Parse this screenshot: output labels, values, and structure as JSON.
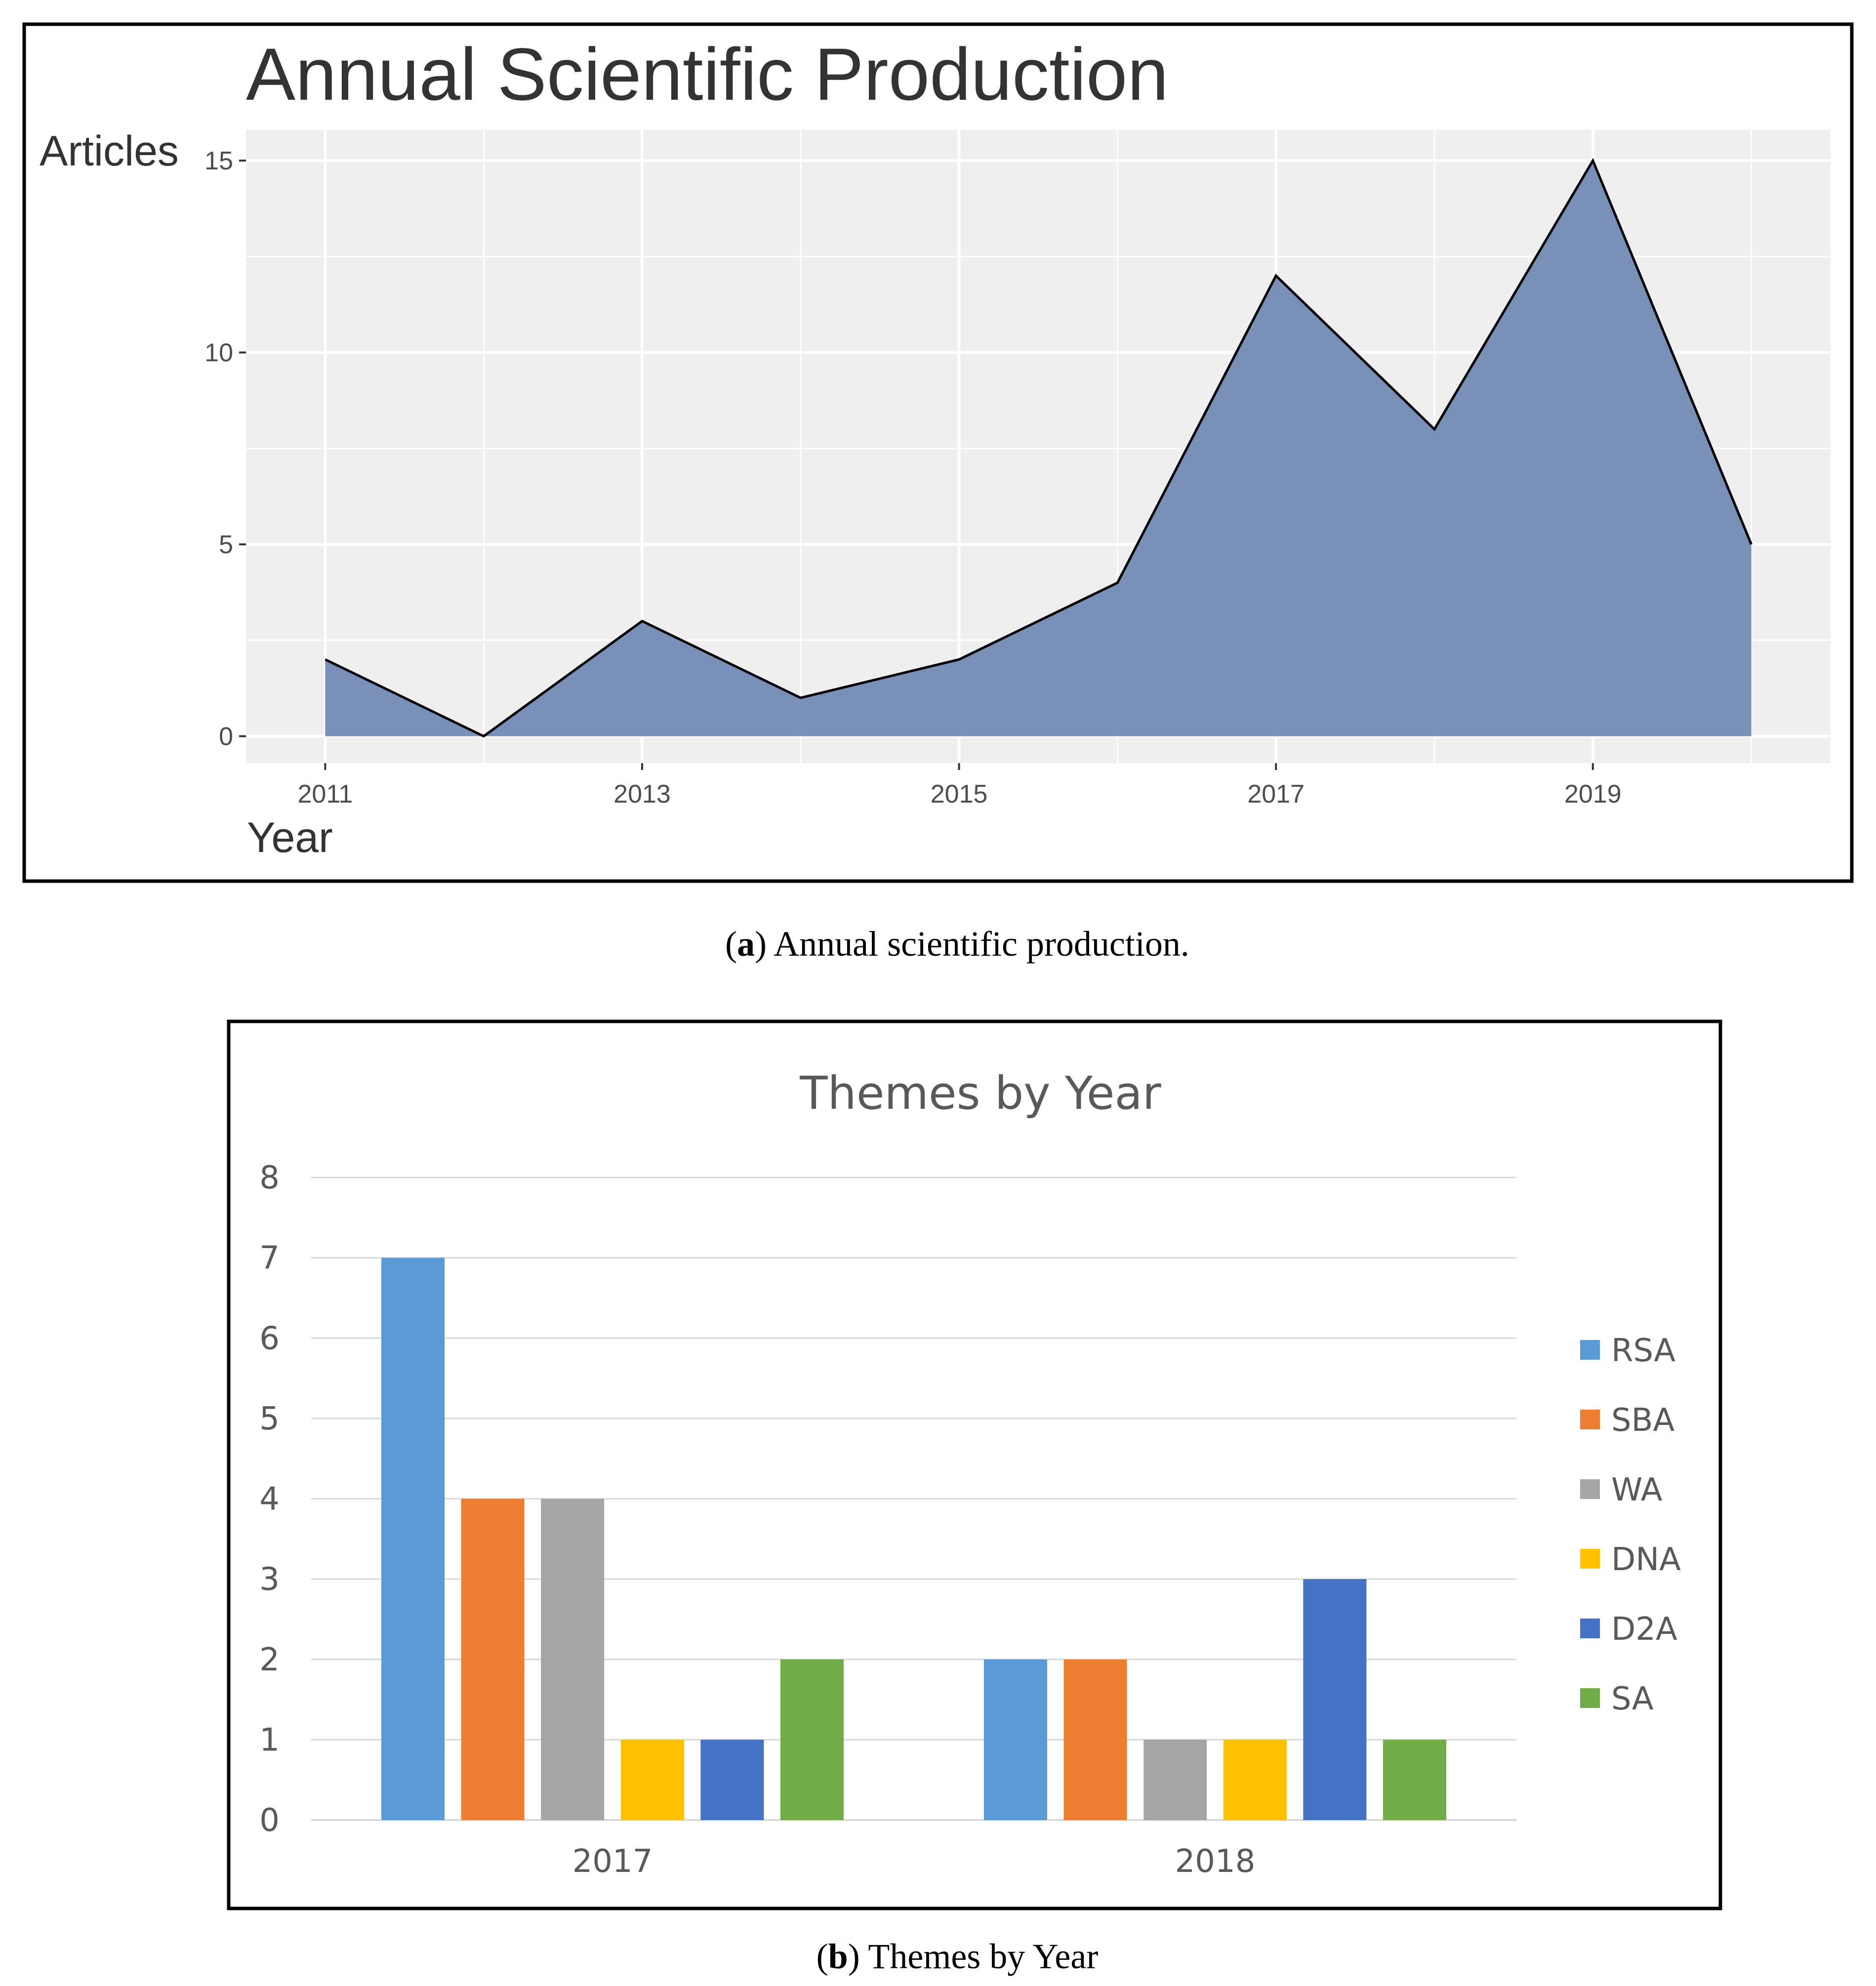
{
  "chart_data": [
    {
      "type": "area",
      "title": "Annual Scientific Production",
      "xlabel": "Year",
      "ylabel": "Articles",
      "x": [
        2011,
        2012,
        2013,
        2014,
        2015,
        2016,
        2017,
        2018,
        2019,
        2020
      ],
      "values": [
        2,
        0,
        3,
        1,
        2,
        4,
        12,
        8,
        15,
        5
      ],
      "xticks": [
        "2011",
        "2013",
        "2015",
        "2017",
        "2019"
      ],
      "yticks": [
        "0",
        "5",
        "10",
        "15"
      ],
      "xlim": [
        2010.5,
        2020.5
      ],
      "ylim": [
        -0.7,
        15.8
      ],
      "grid": true,
      "fill_color": "#7890b8",
      "panel_color": "#efefef",
      "caption_label": "a",
      "caption_text": " Annual scientific production."
    },
    {
      "type": "bar",
      "title": "Themes by Year",
      "categories": [
        "2017",
        "2018"
      ],
      "series": [
        {
          "name": "RSA",
          "values": [
            7,
            2
          ],
          "color": "#5b9bd5"
        },
        {
          "name": "SBA",
          "values": [
            4,
            2
          ],
          "color": "#ed7d31"
        },
        {
          "name": "WA",
          "values": [
            4,
            1
          ],
          "color": "#a5a5a5"
        },
        {
          "name": "DNA",
          "values": [
            1,
            1
          ],
          "color": "#ffc000"
        },
        {
          "name": "D2A",
          "values": [
            1,
            3
          ],
          "color": "#4472c4"
        },
        {
          "name": "SA",
          "values": [
            2,
            1
          ],
          "color": "#70ad47"
        }
      ],
      "yticks": [
        "0",
        "1",
        "2",
        "3",
        "4",
        "5",
        "6",
        "7",
        "8"
      ],
      "ylim": [
        0,
        8
      ],
      "grid": true,
      "legend": "right",
      "caption_label": "b",
      "caption_text": " Themes by Year"
    }
  ]
}
